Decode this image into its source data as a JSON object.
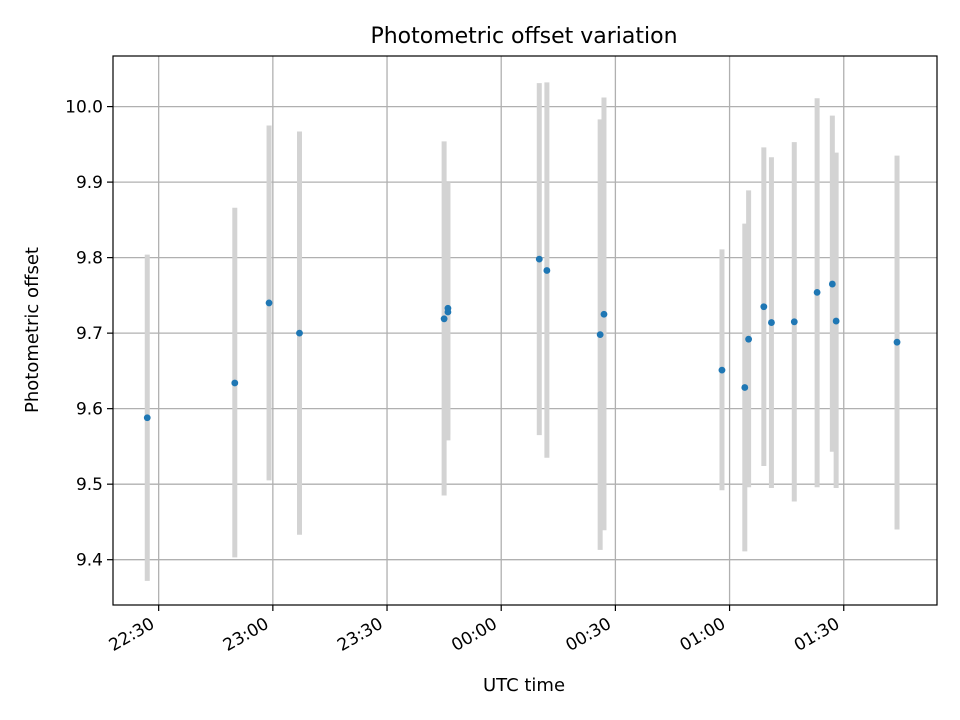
{
  "chart_data": {
    "type": "scatter",
    "title": "Photometric offset variation",
    "xlabel": "UTC time",
    "ylabel": "Photometric offset",
    "x_ticks": [
      "22:30",
      "23:00",
      "23:30",
      "00:00",
      "00:30",
      "01:00",
      "01:30"
    ],
    "x_tick_minutes": [
      -90,
      -60,
      -30,
      0,
      30,
      60,
      90
    ],
    "y_ticks": [
      "9.4",
      "9.5",
      "9.6",
      "9.7",
      "9.8",
      "9.9",
      "10.0"
    ],
    "y_tick_values": [
      9.4,
      9.5,
      9.6,
      9.7,
      9.8,
      9.9,
      10.0
    ],
    "xlim_minutes": [
      -102,
      114.5
    ],
    "ylim": [
      9.34,
      10.067
    ],
    "grid": true,
    "colors": {
      "point": "#1f77b4",
      "errorbar": "#d3d3d3",
      "grid": "#b0b0b0"
    },
    "points": [
      {
        "time": "22:27",
        "value": 9.588,
        "low": 9.372,
        "high": 9.804
      },
      {
        "time": "22:50",
        "value": 9.634,
        "low": 9.403,
        "high": 9.866
      },
      {
        "time": "22:59",
        "value": 9.74,
        "low": 9.505,
        "high": 9.975
      },
      {
        "time": "23:07",
        "value": 9.7,
        "low": 9.433,
        "high": 9.967
      },
      {
        "time": "23:45",
        "value": 9.719,
        "low": 9.485,
        "high": 9.954
      },
      {
        "time": "23:46",
        "value": 9.733,
        "low": 9.566,
        "high": 9.9
      },
      {
        "time": "23:46",
        "value": 9.728,
        "low": 9.558,
        "high": 9.898
      },
      {
        "time": "00:10",
        "value": 9.798,
        "low": 9.565,
        "high": 10.031
      },
      {
        "time": "00:12",
        "value": 9.783,
        "low": 9.535,
        "high": 10.032
      },
      {
        "time": "00:26",
        "value": 9.698,
        "low": 9.413,
        "high": 9.983
      },
      {
        "time": "00:27",
        "value": 9.725,
        "low": 9.439,
        "high": 10.012
      },
      {
        "time": "00:58",
        "value": 9.651,
        "low": 9.492,
        "high": 9.811
      },
      {
        "time": "01:04",
        "value": 9.628,
        "low": 9.411,
        "high": 9.845
      },
      {
        "time": "01:05",
        "value": 9.692,
        "low": 9.496,
        "high": 9.889
      },
      {
        "time": "01:09",
        "value": 9.735,
        "low": 9.524,
        "high": 9.946
      },
      {
        "time": "01:11",
        "value": 9.714,
        "low": 9.495,
        "high": 9.933
      },
      {
        "time": "01:17",
        "value": 9.715,
        "low": 9.477,
        "high": 9.953
      },
      {
        "time": "01:23",
        "value": 9.754,
        "low": 9.496,
        "high": 10.011
      },
      {
        "time": "01:27",
        "value": 9.765,
        "low": 9.543,
        "high": 9.988
      },
      {
        "time": "01:28",
        "value": 9.716,
        "low": 9.495,
        "high": 9.939
      },
      {
        "time": "01:44",
        "value": 9.688,
        "low": 9.44,
        "high": 9.935
      }
    ]
  }
}
